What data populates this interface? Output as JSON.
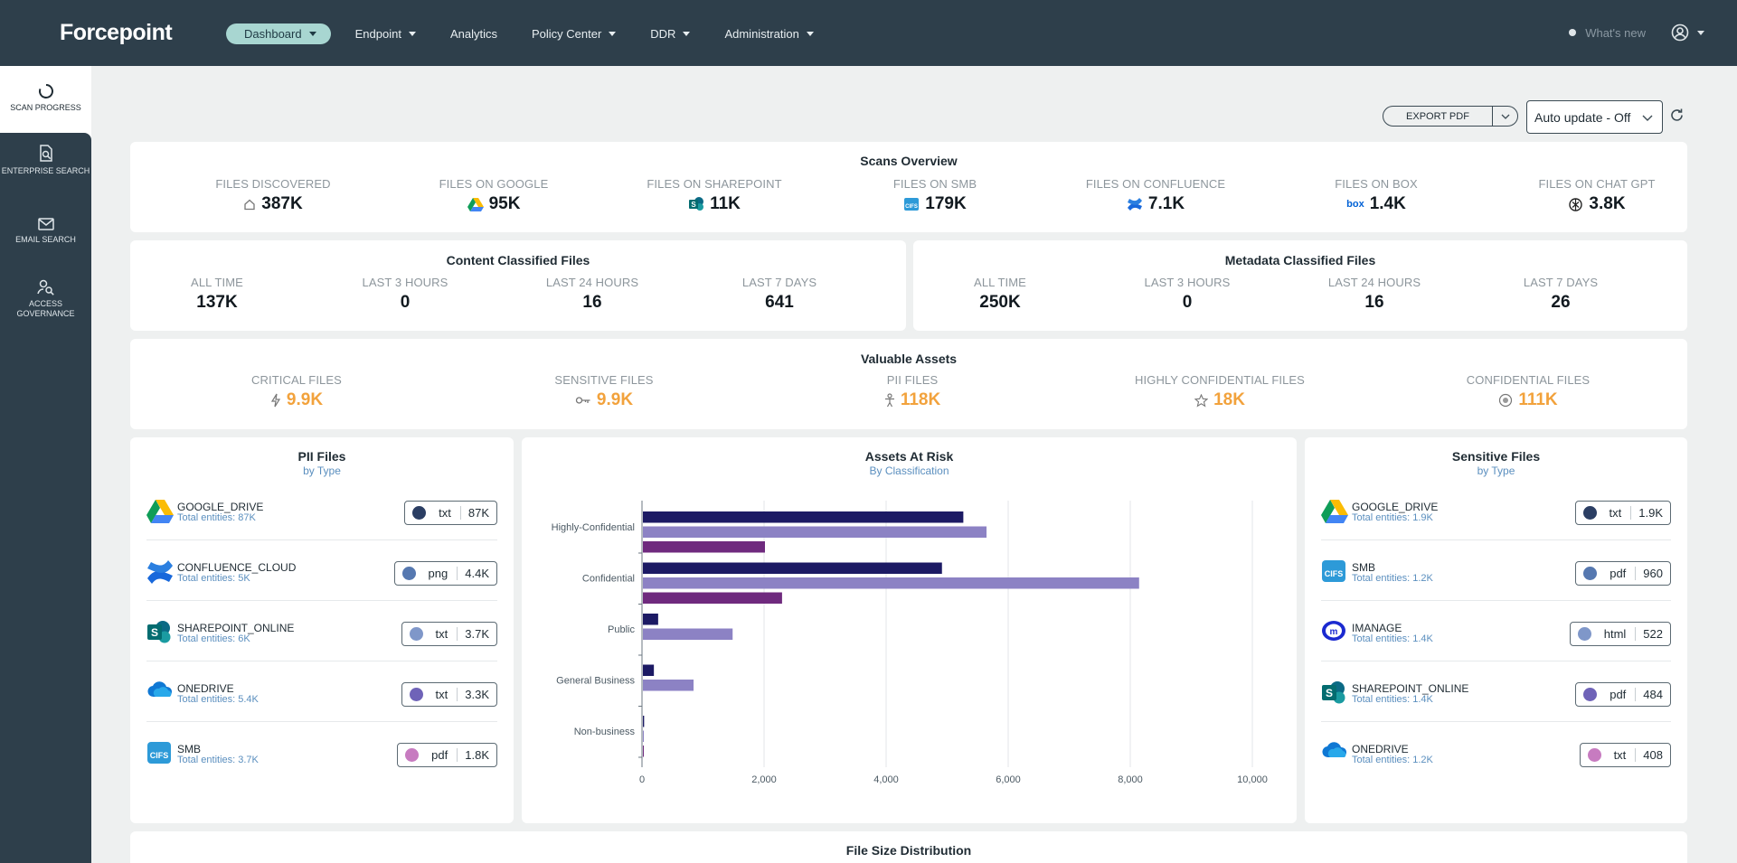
{
  "app": {
    "logo_text": "Forcepoint"
  },
  "nav": {
    "items": [
      {
        "label": "Dashboard",
        "active": true,
        "dropdown": true
      },
      {
        "label": "Endpoint",
        "dropdown": true
      },
      {
        "label": "Analytics",
        "dropdown": false
      },
      {
        "label": "Policy Center",
        "dropdown": true
      },
      {
        "label": "DDR",
        "dropdown": true
      },
      {
        "label": "Administration",
        "dropdown": true
      }
    ],
    "whats_new": "What's new"
  },
  "sidebar": {
    "items": [
      {
        "label": "SCAN PROGRESS",
        "icon": "scan-progress-icon"
      },
      {
        "label": "ENTERPRISE SEARCH",
        "icon": "enterprise-search-icon"
      },
      {
        "label": "EMAIL SEARCH",
        "icon": "email-icon"
      },
      {
        "label": "ACCESS GOVERNANCE",
        "icon": "access-governance-icon"
      }
    ]
  },
  "toolbar": {
    "export_label": "EXPORT PDF",
    "auto_update": "Auto update - Off"
  },
  "scans_overview": {
    "title": "Scans Overview",
    "stats": [
      {
        "label": "FILES DISCOVERED",
        "value": "387K",
        "icon": "home-icon"
      },
      {
        "label": "FILES ON GOOGLE",
        "value": "95K",
        "icon": "google-drive-icon"
      },
      {
        "label": "FILES ON SHAREPOINT",
        "value": "11K",
        "icon": "sharepoint-icon"
      },
      {
        "label": "FILES ON SMB",
        "value": "179K",
        "icon": "smb-icon"
      },
      {
        "label": "FILES ON CONFLUENCE",
        "value": "7.1K",
        "icon": "confluence-icon"
      },
      {
        "label": "FILES ON BOX",
        "value": "1.4K",
        "icon": "box-icon"
      },
      {
        "label": "FILES ON CHAT GPT",
        "value": "3.8K",
        "icon": "chatgpt-icon"
      }
    ]
  },
  "content_classified": {
    "title": "Content Classified Files",
    "stats": [
      {
        "label": "ALL TIME",
        "value": "137K"
      },
      {
        "label": "LAST 3 HOURS",
        "value": "0"
      },
      {
        "label": "LAST 24 HOURS",
        "value": "16"
      },
      {
        "label": "LAST 7 DAYS",
        "value": "641"
      }
    ]
  },
  "metadata_classified": {
    "title": "Metadata Classified Files",
    "stats": [
      {
        "label": "ALL TIME",
        "value": "250K"
      },
      {
        "label": "LAST 3 HOURS",
        "value": "0"
      },
      {
        "label": "LAST 24 HOURS",
        "value": "16"
      },
      {
        "label": "LAST 7 DAYS",
        "value": "26"
      }
    ]
  },
  "valuable_assets": {
    "title": "Valuable Assets",
    "accent": "#f2a23c",
    "stats": [
      {
        "label": "CRITICAL FILES",
        "value": "9.9K",
        "icon": "lightning-icon"
      },
      {
        "label": "SENSITIVE FILES",
        "value": "9.9K",
        "icon": "key-icon"
      },
      {
        "label": "PII FILES",
        "value": "118K",
        "icon": "person-icon"
      },
      {
        "label": "HIGHLY CONFIDENTIAL FILES",
        "value": "18K",
        "icon": "star-icon"
      },
      {
        "label": "CONFIDENTIAL FILES",
        "value": "111K",
        "icon": "target-icon"
      }
    ]
  },
  "pii_files": {
    "title": "PII Files",
    "subtitle": "by Type",
    "rows": [
      {
        "name": "GOOGLE_DRIVE",
        "sub": "Total entities: 87K",
        "ext": "txt",
        "num": "87K",
        "color": "#2b3e63",
        "icon": "google-drive-icon"
      },
      {
        "name": "CONFLUENCE_CLOUD",
        "sub": "Total entities: 5K",
        "ext": "png",
        "num": "4.4K",
        "color": "#5678b0",
        "icon": "confluence-icon"
      },
      {
        "name": "SHAREPOINT_ONLINE",
        "sub": "Total entities: 6K",
        "ext": "txt",
        "num": "3.7K",
        "color": "#7f97c9",
        "icon": "sharepoint-icon"
      },
      {
        "name": "ONEDRIVE",
        "sub": "Total entities: 5.4K",
        "ext": "txt",
        "num": "3.3K",
        "color": "#6f63b8",
        "icon": "onedrive-icon"
      },
      {
        "name": "SMB",
        "sub": "Total entities: 3.7K",
        "ext": "pdf",
        "num": "1.8K",
        "color": "#c77bc0",
        "icon": "smb-icon"
      }
    ]
  },
  "sensitive_files": {
    "title": "Sensitive Files",
    "subtitle": "by Type",
    "rows": [
      {
        "name": "GOOGLE_DRIVE",
        "sub": "Total entities: 1.9K",
        "ext": "txt",
        "num": "1.9K",
        "color": "#2b3e63",
        "icon": "google-drive-icon"
      },
      {
        "name": "SMB",
        "sub": "Total entities: 1.2K",
        "ext": "pdf",
        "num": "960",
        "color": "#5678b0",
        "icon": "smb-icon"
      },
      {
        "name": "IMANAGE",
        "sub": "Total entities: 1.4K",
        "ext": "html",
        "num": "522",
        "color": "#7f97c9",
        "icon": "imanage-icon"
      },
      {
        "name": "SHAREPOINT_ONLINE",
        "sub": "Total entities: 1.4K",
        "ext": "pdf",
        "num": "484",
        "color": "#6f63b8",
        "icon": "sharepoint-icon"
      },
      {
        "name": "ONEDRIVE",
        "sub": "Total entities: 1.2K",
        "ext": "txt",
        "num": "408",
        "color": "#c77bc0",
        "icon": "onedrive-icon"
      }
    ]
  },
  "assets_at_risk": {
    "title": "Assets At Risk",
    "subtitle": "By Classification"
  },
  "chart_data": {
    "type": "bar",
    "orientation": "horizontal",
    "categories": [
      "Highly-Confidential",
      "Confidential",
      "Public",
      "General Business",
      "Non-business"
    ],
    "series": [
      {
        "values": [
          5250,
          4900,
          250,
          180,
          20
        ],
        "color": "#1c1a64"
      },
      {
        "values": [
          5630,
          8130,
          1470,
          830,
          15
        ],
        "color": "#8c82c4"
      },
      {
        "values": [
          2000,
          2280,
          0,
          0,
          10
        ],
        "color": "#6f2a7e"
      }
    ],
    "xlim": [
      0,
      10000
    ],
    "xticks": [
      "0",
      "2,000",
      "4,000",
      "6,000",
      "8,000",
      "10,000"
    ],
    "grid": true
  },
  "file_size": {
    "title": "File Size Distribution"
  }
}
